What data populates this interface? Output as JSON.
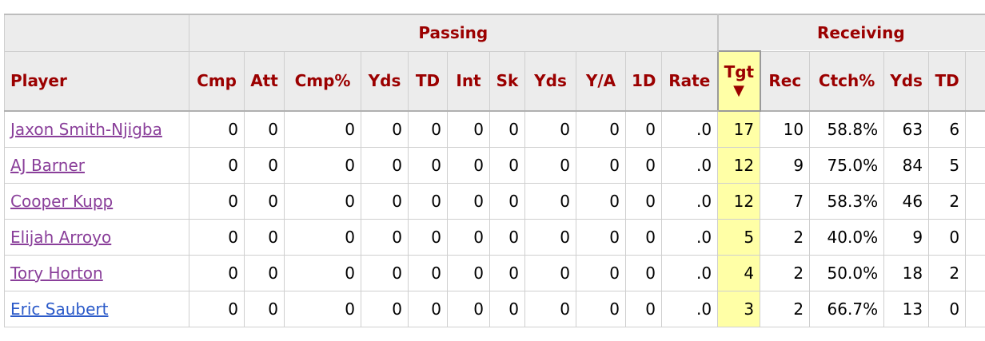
{
  "over_headers": {
    "blank": "",
    "passing": "Passing",
    "receiving": "Receiving"
  },
  "columns": {
    "player": "Player",
    "cmp": "Cmp",
    "att": "Att",
    "cmp_pct": "Cmp%",
    "pass_yds": "Yds",
    "pass_td": "TD",
    "int": "Int",
    "sk": "Sk",
    "sk_yds": "Yds",
    "ya": "Y/A",
    "first_downs": "1D",
    "rate": "Rate",
    "tgt": "Tgt",
    "tgt_sort_arrow": "▼",
    "rec": "Rec",
    "ctch_pct": "Ctch%",
    "rec_yds": "Yds",
    "rec_td": "TD"
  },
  "rows": [
    {
      "player": "Jaxon Smith-Njigba",
      "cmp": "0",
      "att": "0",
      "cmp_pct": "0",
      "pass_yds": "0",
      "pass_td": "0",
      "int": "0",
      "sk": "0",
      "sk_yds": "0",
      "ya": "0",
      "first_downs": "0",
      "rate": ".0",
      "tgt": "17",
      "rec": "10",
      "ctch_pct": "58.8%",
      "rec_yds": "63",
      "rec_td": "6"
    },
    {
      "player": "AJ Barner",
      "cmp": "0",
      "att": "0",
      "cmp_pct": "0",
      "pass_yds": "0",
      "pass_td": "0",
      "int": "0",
      "sk": "0",
      "sk_yds": "0",
      "ya": "0",
      "first_downs": "0",
      "rate": ".0",
      "tgt": "12",
      "rec": "9",
      "ctch_pct": "75.0%",
      "rec_yds": "84",
      "rec_td": "5"
    },
    {
      "player": "Cooper Kupp",
      "cmp": "0",
      "att": "0",
      "cmp_pct": "0",
      "pass_yds": "0",
      "pass_td": "0",
      "int": "0",
      "sk": "0",
      "sk_yds": "0",
      "ya": "0",
      "first_downs": "0",
      "rate": ".0",
      "tgt": "12",
      "rec": "7",
      "ctch_pct": "58.3%",
      "rec_yds": "46",
      "rec_td": "2"
    },
    {
      "player": "Elijah Arroyo",
      "cmp": "0",
      "att": "0",
      "cmp_pct": "0",
      "pass_yds": "0",
      "pass_td": "0",
      "int": "0",
      "sk": "0",
      "sk_yds": "0",
      "ya": "0",
      "first_downs": "0",
      "rate": ".0",
      "tgt": "5",
      "rec": "2",
      "ctch_pct": "40.0%",
      "rec_yds": "9",
      "rec_td": "0"
    },
    {
      "player": "Tory Horton",
      "cmp": "0",
      "att": "0",
      "cmp_pct": "0",
      "pass_yds": "0",
      "pass_td": "0",
      "int": "0",
      "sk": "0",
      "sk_yds": "0",
      "ya": "0",
      "first_downs": "0",
      "rate": ".0",
      "tgt": "4",
      "rec": "2",
      "ctch_pct": "50.0%",
      "rec_yds": "18",
      "rec_td": "2"
    },
    {
      "player": "Eric Saubert",
      "cmp": "0",
      "att": "0",
      "cmp_pct": "0",
      "pass_yds": "0",
      "pass_td": "0",
      "int": "0",
      "sk": "0",
      "sk_yds": "0",
      "ya": "0",
      "first_downs": "0",
      "rate": ".0",
      "tgt": "3",
      "rec": "2",
      "ctch_pct": "66.7%",
      "rec_yds": "13",
      "rec_td": "0"
    }
  ],
  "colors": {
    "header_text": "#9b0000",
    "header_bg": "#ececec",
    "sorted_column_bg": "#ffffa6",
    "visited_link": "#8a3f9a",
    "unvisited_link": "#2b5ac9"
  }
}
